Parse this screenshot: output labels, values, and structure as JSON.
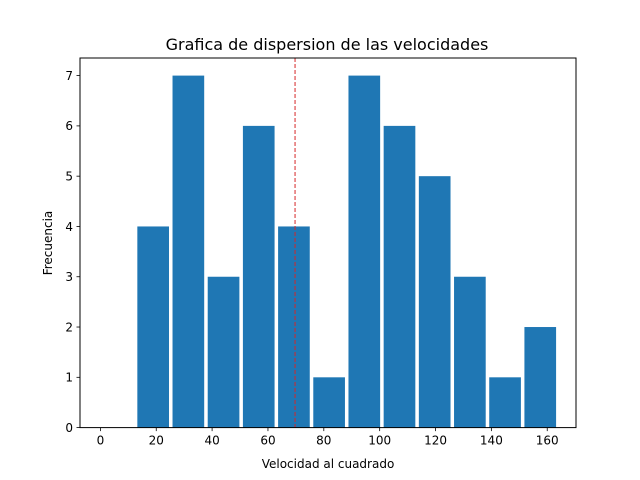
{
  "chart_data": {
    "type": "bar",
    "title": "Grafica de dispersion de las velocidades",
    "xlabel": "Velocidad al cuadrado",
    "ylabel": "Frecuencia",
    "xlim": [
      -7.3,
      170.3
    ],
    "ylim": [
      0,
      7.35
    ],
    "xticks": [
      0,
      20,
      40,
      60,
      80,
      100,
      120,
      140,
      160
    ],
    "yticks": [
      0,
      1,
      2,
      3,
      4,
      5,
      6,
      7
    ],
    "bin_edges": [
      12.6,
      25.2,
      37.8,
      50.4,
      63.0,
      75.6,
      88.2,
      100.8,
      113.4,
      126.0,
      138.6,
      151.2,
      163.8
    ],
    "bar_relative_width": 0.9,
    "values": [
      4,
      7,
      3,
      6,
      4,
      1,
      7,
      6,
      5,
      3,
      1,
      2
    ],
    "bar_color": "#1f77b4",
    "reference_line": {
      "x": 69.7,
      "color": "#d62728",
      "style": "dashed"
    },
    "grid": false
  }
}
